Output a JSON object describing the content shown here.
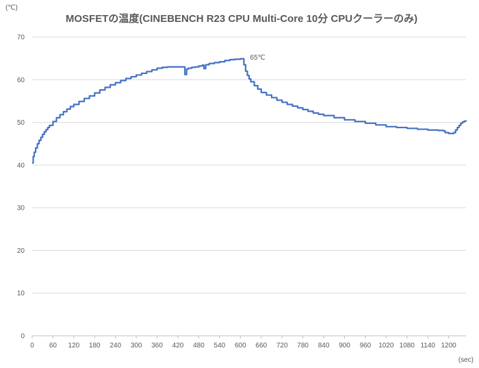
{
  "chart_data": {
    "type": "line",
    "title": "MOSFETの温度(CINEBENCH R23 CPU Multi-Core 10分 CPUクーラーのみ)",
    "y_unit": "(℃)",
    "x_unit": "(sec)",
    "ylim": [
      0,
      70
    ],
    "xlim": [
      0,
      1250
    ],
    "y_ticks": [
      "0",
      "10",
      "20",
      "30",
      "40",
      "50",
      "60",
      "70"
    ],
    "x_ticks": [
      "0",
      "60",
      "120",
      "180",
      "240",
      "300",
      "360",
      "420",
      "480",
      "540",
      "600",
      "660",
      "720",
      "780",
      "840",
      "900",
      "960",
      "1020",
      "1080",
      "1140",
      "1200"
    ],
    "grid": true,
    "legend": "none",
    "color": "#4472c4",
    "annotation": {
      "text": "65℃",
      "x": 610,
      "y": 65
    },
    "series": [
      {
        "x": [
          0,
          3,
          6,
          10,
          15,
          20,
          25,
          30,
          35,
          40,
          45,
          50,
          60,
          70,
          80,
          90,
          100,
          110,
          120,
          135,
          150,
          165,
          180,
          195,
          210,
          225,
          240,
          255,
          270,
          285,
          300,
          315,
          330,
          345,
          360,
          375,
          390,
          405,
          420,
          435,
          440,
          445,
          450,
          460,
          470,
          480,
          490,
          495,
          500,
          510,
          525,
          540,
          555,
          570,
          585,
          600,
          605,
          610,
          615,
          620,
          625,
          630,
          640,
          650,
          660,
          675,
          690,
          705,
          720,
          735,
          750,
          765,
          780,
          795,
          810,
          825,
          840,
          870,
          900,
          930,
          960,
          990,
          1020,
          1050,
          1080,
          1110,
          1140,
          1170,
          1185,
          1190,
          1200,
          1210,
          1215,
          1220,
          1225,
          1230,
          1235,
          1240,
          1245,
          1250
        ],
        "y": [
          40.5,
          42,
          43,
          44,
          45,
          45.8,
          46.5,
          47.2,
          47.8,
          48.3,
          48.8,
          49.3,
          50.2,
          51.1,
          51.8,
          52.5,
          53.1,
          53.7,
          54.2,
          54.9,
          55.6,
          56.2,
          56.9,
          57.6,
          58.2,
          58.8,
          59.3,
          59.8,
          60.3,
          60.7,
          61.1,
          61.5,
          61.9,
          62.3,
          62.7,
          62.9,
          63.0,
          63.0,
          63.0,
          63.0,
          61.2,
          62.5,
          62.7,
          62.9,
          63.0,
          63.2,
          63.4,
          62.6,
          63.5,
          63.8,
          64.0,
          64.2,
          64.5,
          64.7,
          64.8,
          64.9,
          64.9,
          63.5,
          62.0,
          61.0,
          60.2,
          59.5,
          58.6,
          57.8,
          57.0,
          56.4,
          55.8,
          55.2,
          54.7,
          54.2,
          53.8,
          53.4,
          53.0,
          52.6,
          52.2,
          51.9,
          51.6,
          51.1,
          50.6,
          50.2,
          49.8,
          49.4,
          49.0,
          48.8,
          48.6,
          48.4,
          48.2,
          48.1,
          48.0,
          47.6,
          47.4,
          47.4,
          47.6,
          48.2,
          48.8,
          49.3,
          49.8,
          50.1,
          50.3,
          50.5
        ]
      }
    ]
  }
}
